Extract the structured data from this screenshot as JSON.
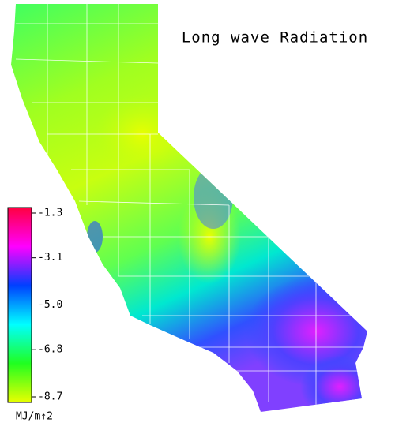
{
  "chart_data": {
    "type": "colormap",
    "title": "Long wave Radiation",
    "colorbar": {
      "label": "MJ/m↑2",
      "clim": [
        -8.7,
        -1.3
      ],
      "ticks": [
        -1.3,
        -3.1,
        {
          "value": -5,
          "label": "-5.0"
        },
        -6.8,
        -8.7
      ],
      "colors": [
        "#e8ff00",
        "#20ff20",
        "#00ffff",
        "#0040ff",
        "#ff00ff",
        "#ff0040"
      ]
    }
  }
}
